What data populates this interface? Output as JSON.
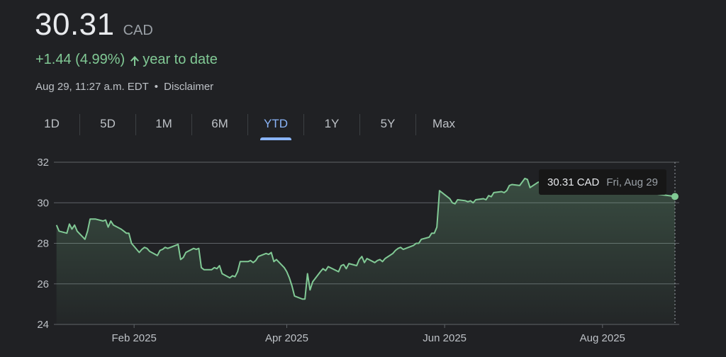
{
  "quote": {
    "price": "30.31",
    "currency": "CAD",
    "change": "+1.44 (4.99%)",
    "period_label": "year to date",
    "timestamp": "Aug 29, 11:27 a.m. EDT",
    "disclaimer": "Disclaimer"
  },
  "colors": {
    "positive": "#81c995",
    "accent": "#8ab4f8",
    "background": "#202124"
  },
  "tabs": [
    {
      "label": "1D",
      "active": false
    },
    {
      "label": "5D",
      "active": false
    },
    {
      "label": "1M",
      "active": false
    },
    {
      "label": "6M",
      "active": false
    },
    {
      "label": "YTD",
      "active": true
    },
    {
      "label": "1Y",
      "active": false
    },
    {
      "label": "5Y",
      "active": false
    },
    {
      "label": "Max",
      "active": false
    }
  ],
  "tooltip": {
    "value": "30.31 CAD",
    "date": "Fri, Aug 29"
  },
  "chart_data": {
    "type": "area",
    "xlabel": "",
    "ylabel": "",
    "ylim": [
      24,
      32
    ],
    "xlim": [
      "2025-01-01",
      "2025-08-29"
    ],
    "yticks": [
      24,
      26,
      28,
      30,
      32
    ],
    "xticks": [
      {
        "label": "Feb 2025",
        "date": "2025-02-01"
      },
      {
        "label": "Apr 2025",
        "date": "2025-04-01"
      },
      {
        "label": "Jun 2025",
        "date": "2025-06-01"
      },
      {
        "label": "Aug 2025",
        "date": "2025-08-01"
      }
    ],
    "grid": true,
    "series": [
      {
        "points": [
          [
            "2025-01-02",
            28.9
          ],
          [
            "2025-01-03",
            28.6
          ],
          [
            "2025-01-06",
            28.5
          ],
          [
            "2025-01-07",
            28.95
          ],
          [
            "2025-01-08",
            28.7
          ],
          [
            "2025-01-09",
            28.9
          ],
          [
            "2025-01-10",
            28.6
          ],
          [
            "2025-01-13",
            28.2
          ],
          [
            "2025-01-14",
            28.6
          ],
          [
            "2025-01-15",
            29.2
          ],
          [
            "2025-01-16",
            29.2
          ],
          [
            "2025-01-17",
            29.2
          ],
          [
            "2025-01-20",
            29.1
          ],
          [
            "2025-01-21",
            29.15
          ],
          [
            "2025-01-22",
            28.8
          ],
          [
            "2025-01-23",
            29.1
          ],
          [
            "2025-01-24",
            28.9
          ],
          [
            "2025-01-27",
            28.7
          ],
          [
            "2025-01-28",
            28.6
          ],
          [
            "2025-01-29",
            28.5
          ],
          [
            "2025-01-30",
            28.5
          ],
          [
            "2025-01-31",
            28.0
          ],
          [
            "2025-02-03",
            27.55
          ],
          [
            "2025-02-04",
            27.7
          ],
          [
            "2025-02-05",
            27.8
          ],
          [
            "2025-02-06",
            27.75
          ],
          [
            "2025-02-07",
            27.6
          ],
          [
            "2025-02-10",
            27.4
          ],
          [
            "2025-02-11",
            27.65
          ],
          [
            "2025-02-12",
            27.7
          ],
          [
            "2025-02-13",
            27.8
          ],
          [
            "2025-02-14",
            27.75
          ],
          [
            "2025-02-17",
            27.9
          ],
          [
            "2025-02-18",
            27.95
          ],
          [
            "2025-02-19",
            27.2
          ],
          [
            "2025-02-20",
            27.3
          ],
          [
            "2025-02-21",
            27.55
          ],
          [
            "2025-02-24",
            27.75
          ],
          [
            "2025-02-25",
            27.7
          ],
          [
            "2025-02-26",
            27.75
          ],
          [
            "2025-02-27",
            26.8
          ],
          [
            "2025-02-28",
            26.7
          ],
          [
            "2025-03-03",
            26.7
          ],
          [
            "2025-03-04",
            26.8
          ],
          [
            "2025-03-05",
            26.75
          ],
          [
            "2025-03-06",
            26.9
          ],
          [
            "2025-03-07",
            26.5
          ],
          [
            "2025-03-10",
            26.3
          ],
          [
            "2025-03-11",
            26.4
          ],
          [
            "2025-03-12",
            26.35
          ],
          [
            "2025-03-13",
            26.6
          ],
          [
            "2025-03-14",
            27.1
          ],
          [
            "2025-03-17",
            27.1
          ],
          [
            "2025-03-18",
            27.15
          ],
          [
            "2025-03-19",
            27.05
          ],
          [
            "2025-03-20",
            27.15
          ],
          [
            "2025-03-21",
            27.35
          ],
          [
            "2025-03-24",
            27.5
          ],
          [
            "2025-03-25",
            27.45
          ],
          [
            "2025-03-26",
            27.55
          ],
          [
            "2025-03-27",
            27.1
          ],
          [
            "2025-03-28",
            27.2
          ],
          [
            "2025-03-31",
            26.8
          ],
          [
            "2025-04-01",
            26.6
          ],
          [
            "2025-04-02",
            26.3
          ],
          [
            "2025-04-03",
            25.9
          ],
          [
            "2025-04-04",
            25.4
          ],
          [
            "2025-04-07",
            25.25
          ],
          [
            "2025-04-08",
            25.25
          ],
          [
            "2025-04-09",
            26.5
          ],
          [
            "2025-04-10",
            25.7
          ],
          [
            "2025-04-11",
            26.1
          ],
          [
            "2025-04-14",
            26.6
          ],
          [
            "2025-04-15",
            26.75
          ],
          [
            "2025-04-16",
            26.65
          ],
          [
            "2025-04-17",
            26.85
          ],
          [
            "2025-04-21",
            26.6
          ],
          [
            "2025-04-22",
            26.9
          ],
          [
            "2025-04-23",
            26.95
          ],
          [
            "2025-04-24",
            26.75
          ],
          [
            "2025-04-25",
            27.0
          ],
          [
            "2025-04-28",
            26.9
          ],
          [
            "2025-04-29",
            27.2
          ],
          [
            "2025-04-30",
            27.35
          ],
          [
            "2025-05-01",
            27.05
          ],
          [
            "2025-05-02",
            27.25
          ],
          [
            "2025-05-05",
            27.05
          ],
          [
            "2025-05-06",
            27.15
          ],
          [
            "2025-05-07",
            27.2
          ],
          [
            "2025-05-08",
            27.1
          ],
          [
            "2025-05-09",
            27.25
          ],
          [
            "2025-05-12",
            27.5
          ],
          [
            "2025-05-13",
            27.65
          ],
          [
            "2025-05-14",
            27.75
          ],
          [
            "2025-05-15",
            27.8
          ],
          [
            "2025-05-16",
            27.7
          ],
          [
            "2025-05-20",
            27.9
          ],
          [
            "2025-05-21",
            28.0
          ],
          [
            "2025-05-22",
            28.0
          ],
          [
            "2025-05-23",
            28.2
          ],
          [
            "2025-05-26",
            28.3
          ],
          [
            "2025-05-27",
            28.5
          ],
          [
            "2025-05-28",
            28.5
          ],
          [
            "2025-05-29",
            28.8
          ],
          [
            "2025-05-30",
            30.6
          ],
          [
            "2025-06-02",
            30.3
          ],
          [
            "2025-06-03",
            30.2
          ],
          [
            "2025-06-04",
            30.0
          ],
          [
            "2025-06-05",
            29.95
          ],
          [
            "2025-06-06",
            30.15
          ],
          [
            "2025-06-09",
            30.1
          ],
          [
            "2025-06-10",
            30.05
          ],
          [
            "2025-06-11",
            30.1
          ],
          [
            "2025-06-12",
            30.0
          ],
          [
            "2025-06-13",
            30.15
          ],
          [
            "2025-06-16",
            30.2
          ],
          [
            "2025-06-17",
            30.15
          ],
          [
            "2025-06-18",
            30.35
          ],
          [
            "2025-06-19",
            30.3
          ],
          [
            "2025-06-20",
            30.5
          ],
          [
            "2025-06-23",
            30.55
          ],
          [
            "2025-06-24",
            30.5
          ],
          [
            "2025-06-25",
            30.6
          ],
          [
            "2025-06-26",
            30.85
          ],
          [
            "2025-06-27",
            30.9
          ],
          [
            "2025-06-30",
            30.85
          ],
          [
            "2025-07-02",
            31.2
          ],
          [
            "2025-07-03",
            31.15
          ],
          [
            "2025-07-04",
            30.75
          ],
          [
            "2025-07-07",
            31.0
          ],
          [
            "2025-07-08",
            31.05
          ],
          [
            "2025-07-09",
            31.1
          ],
          [
            "2025-07-10",
            31.1
          ],
          [
            "2025-07-11",
            31.15
          ],
          [
            "2025-08-29",
            30.31
          ]
        ]
      }
    ]
  }
}
